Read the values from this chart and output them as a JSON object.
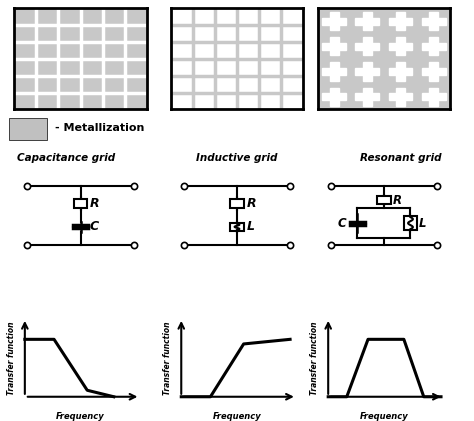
{
  "bg_color": "#ffffff",
  "gray": "#c0c0c0",
  "black": "#000000",
  "white": "#ffffff",
  "title1": "Capacitance grid",
  "title2": "Inductive grid",
  "title3": "Resonant grid",
  "legend_text": "- Metallization",
  "ylabel": "Transfer function",
  "xlabel": "Frequency",
  "grid1_bg": "#c8c8c8",
  "grid1_line": "#ffffff",
  "grid2_bg": "#ffffff",
  "grid2_line": "#c8c8c8",
  "grid3_bg": "#c8c8c8",
  "grid3_line": "#ffffff"
}
